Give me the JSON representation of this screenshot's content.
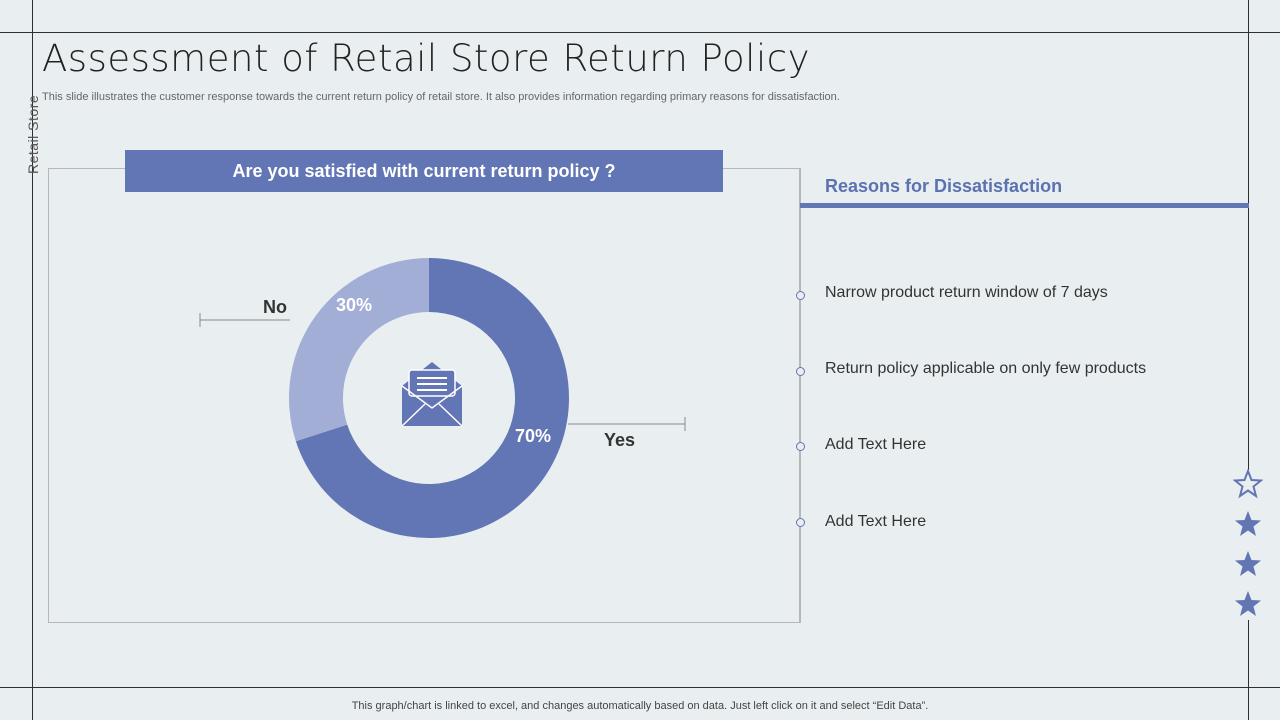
{
  "header": {
    "title": "Assessment of Retail Store Return Policy",
    "subtitle": "This slide illustrates the customer response towards the current return policy of retail store. It also provides information regarding primary reasons for dissatisfaction.",
    "side_label": "Retail Store"
  },
  "chart_data": {
    "type": "pie",
    "title": "Are you satisfied with current return policy ?",
    "categories": [
      "Yes",
      "No"
    ],
    "values": [
      70,
      30
    ],
    "value_labels": [
      "70%",
      "30%"
    ],
    "colors": [
      "#6275b5",
      "#a2aed6"
    ],
    "center_icon": "envelope-icon"
  },
  "reasons": {
    "title": "Reasons for Dissatisfaction",
    "items": [
      "Narrow product return  window of 7 days",
      "Return  policy applicable on only few products",
      "Add Text Here",
      "Add Text Here"
    ]
  },
  "decorations": {
    "stars": [
      "star-outline-icon",
      "star-icon",
      "star-icon",
      "star-icon"
    ],
    "accent": "#6275b5"
  },
  "footer": {
    "note": "This graph/chart is linked to excel,  and changes automatically based on data. Just left click on it and select “Edit Data”."
  }
}
